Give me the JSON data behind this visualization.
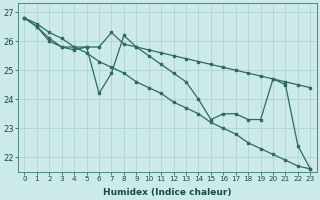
{
  "title": "",
  "xlabel": "Humidex (Indice chaleur)",
  "bg_color": "#cdeaea",
  "grid_color": "#aacece",
  "line_color": "#2d6b5e",
  "x_ticks": [
    0,
    1,
    2,
    3,
    4,
    5,
    6,
    7,
    8,
    9,
    10,
    11,
    12,
    13,
    14,
    15,
    16,
    17,
    18,
    19,
    20,
    21,
    22,
    23
  ],
  "ylim": [
    21.5,
    27.3
  ],
  "yticks": [
    22,
    23,
    24,
    25,
    26,
    27
  ],
  "line_straight": [
    26.8,
    26.6,
    26.3,
    26.1,
    25.8,
    25.6,
    25.3,
    25.1,
    24.9,
    24.6,
    24.4,
    24.2,
    23.9,
    23.7,
    23.5,
    23.2,
    23.0,
    22.8,
    22.5,
    22.3,
    22.1,
    21.9,
    21.7,
    21.6
  ],
  "line_upper": [
    26.8,
    26.5,
    26.1,
    25.8,
    25.8,
    25.8,
    25.8,
    26.3,
    25.9,
    25.8,
    25.7,
    25.6,
    25.5,
    25.4,
    25.3,
    25.2,
    25.1,
    25.0,
    24.9,
    24.8,
    24.7,
    24.6,
    24.5,
    24.4
  ],
  "line_jagged": [
    26.8,
    26.5,
    26.0,
    25.8,
    25.7,
    25.8,
    24.2,
    24.9,
    26.2,
    25.8,
    25.5,
    25.2,
    24.9,
    24.6,
    24.0,
    23.3,
    23.5,
    23.5,
    23.3,
    23.3,
    24.7,
    24.5,
    22.4,
    21.6
  ]
}
